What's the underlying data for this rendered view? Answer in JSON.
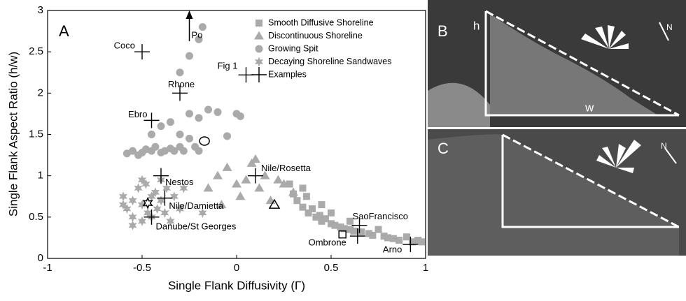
{
  "chart_data": {
    "type": "scatter",
    "panel_label": "A",
    "xlabel": "Single Flank Diffusivity (Γ)",
    "ylabel": "Single Flank Aspect Ratio (h/w)",
    "xlim": [
      -1,
      1
    ],
    "ylim": [
      0,
      3
    ],
    "xticks": [
      -1,
      -0.5,
      0,
      0.5,
      1
    ],
    "yticks": [
      0,
      0.5,
      1,
      1.5,
      2,
      2.5,
      3
    ],
    "legend": "top-right",
    "series": [
      {
        "name": "Smooth Diffusive Shoreline",
        "marker": "square",
        "color": "#aaaaaa",
        "x": [
          0.28,
          0.3,
          0.32,
          0.35,
          0.37,
          0.38,
          0.4,
          0.42,
          0.44,
          0.45,
          0.47,
          0.5,
          0.52,
          0.55,
          0.57,
          0.6,
          0.62,
          0.66,
          0.7,
          0.72,
          0.75,
          0.78,
          0.8,
          0.83,
          0.86,
          0.9,
          0.93,
          0.96,
          0.98,
          0.45,
          0.5,
          0.35,
          0.6
        ],
        "values": [
          0.9,
          0.78,
          0.7,
          0.62,
          0.75,
          0.55,
          0.6,
          0.5,
          0.52,
          0.45,
          0.48,
          0.42,
          0.4,
          0.38,
          0.36,
          0.35,
          0.33,
          0.32,
          0.3,
          0.28,
          0.35,
          0.27,
          0.25,
          0.24,
          0.22,
          0.26,
          0.2,
          0.22,
          0.2,
          0.65,
          0.55,
          0.85,
          0.45
        ]
      },
      {
        "name": "Discontinuous Shoreline",
        "marker": "triangle",
        "color": "#aaaaaa",
        "x": [
          -0.15,
          -0.1,
          -0.05,
          0,
          0.02,
          0.05,
          0.08,
          0.12,
          0.15,
          0.18,
          0.22,
          0.25,
          0.3,
          -0.08,
          0.1
        ],
        "values": [
          0.85,
          1.0,
          1.1,
          0.9,
          0.75,
          0.95,
          1.15,
          0.85,
          1.0,
          0.7,
          0.95,
          0.9,
          0.8,
          0.65,
          1.2
        ]
      },
      {
        "name": "Growing Spit",
        "marker": "circle",
        "color": "#aaaaaa",
        "x": [
          -0.58,
          -0.55,
          -0.52,
          -0.5,
          -0.48,
          -0.45,
          -0.43,
          -0.4,
          -0.38,
          -0.35,
          -0.33,
          -0.3,
          -0.28,
          -0.25,
          -0.22,
          -0.2,
          -0.45,
          -0.4,
          -0.35,
          -0.3,
          -0.25,
          -0.2,
          -0.15,
          -0.1,
          -0.05,
          0,
          0.02,
          -0.3,
          -0.25,
          -0.2,
          -0.18
        ],
        "values": [
          1.27,
          1.3,
          1.25,
          1.28,
          1.32,
          1.3,
          1.35,
          1.28,
          1.3,
          1.33,
          1.3,
          1.35,
          1.3,
          1.45,
          1.35,
          1.3,
          1.5,
          1.6,
          1.65,
          1.5,
          1.75,
          1.7,
          1.8,
          1.77,
          1.48,
          1.75,
          1.72,
          2.25,
          2.45,
          2.65,
          2.8
        ]
      },
      {
        "name": "Decaying Shoreline Sandwaves",
        "marker": "star",
        "color": "#aaaaaa",
        "x": [
          -0.6,
          -0.58,
          -0.55,
          -0.55,
          -0.52,
          -0.5,
          -0.5,
          -0.48,
          -0.47,
          -0.45,
          -0.43,
          -0.42,
          -0.4,
          -0.4,
          -0.38,
          -0.37,
          -0.35,
          -0.33,
          -0.55,
          -0.5,
          -0.45,
          -0.28,
          -0.18,
          -0.3,
          -0.6
        ],
        "values": [
          0.75,
          0.6,
          0.7,
          0.5,
          0.85,
          0.65,
          0.45,
          0.9,
          0.55,
          0.75,
          0.8,
          0.6,
          0.7,
          0.95,
          0.55,
          0.85,
          0.45,
          0.75,
          0.4,
          0.95,
          0.5,
          0.85,
          0.55,
          0.6,
          0.65
        ]
      },
      {
        "name": "Examples",
        "marker": "plus",
        "color": "#000000",
        "labels": [
          "Coco",
          "Fig 1",
          "Rhone",
          "Ebro",
          "Nestos",
          "Nile/Rosetta",
          "Nile/Damietta",
          "Danube/St Georges",
          "SaoFrancisco",
          "Ombrone",
          "Arno"
        ],
        "x": [
          -0.5,
          0.05,
          -0.3,
          -0.45,
          -0.4,
          0.1,
          -0.38,
          -0.45,
          0.65,
          0.64,
          0.92
        ],
        "values": [
          2.5,
          2.22,
          2.0,
          1.67,
          1.0,
          1.0,
          0.73,
          0.5,
          0.4,
          0.27,
          0.17
        ]
      }
    ],
    "highlights": [
      {
        "marker": "circle",
        "x": [
          -0.17
        ],
        "values": [
          1.42
        ]
      },
      {
        "marker": "triangle",
        "x": [
          0.2
        ],
        "values": [
          0.65
        ]
      },
      {
        "marker": "star",
        "x": [
          -0.47
        ],
        "values": [
          0.67
        ]
      },
      {
        "marker": "square",
        "x": [
          0.56
        ],
        "values": [
          0.29
        ]
      }
    ],
    "arrow": {
      "text": "Po",
      "x": -0.25,
      "y": 3
    }
  },
  "panels": [
    {
      "label": "B",
      "height_label": "h",
      "width_label": "w",
      "north": "N"
    },
    {
      "label": "C",
      "north": "N"
    }
  ]
}
